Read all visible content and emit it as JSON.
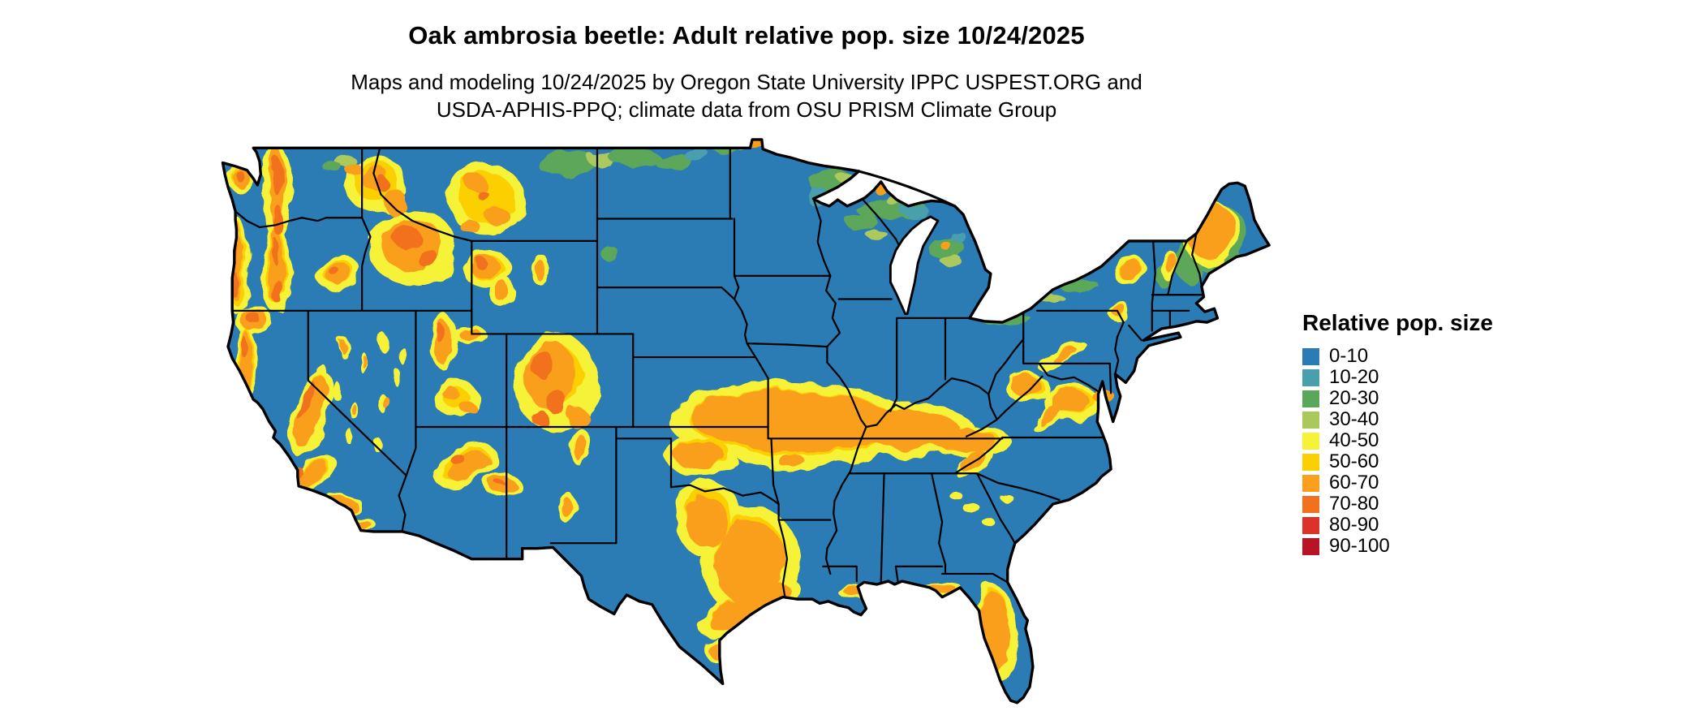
{
  "header": {
    "title": "Oak ambrosia beetle: Adult relative pop. size 10/24/2025",
    "subtitle_line1": "Maps and modeling 10/24/2025 by Oregon State University IPPC USPEST.ORG and",
    "subtitle_line2": "USDA-APHIS-PPQ; climate data from OSU PRISM Climate Group"
  },
  "legend": {
    "title": "Relative pop. size",
    "items": [
      {
        "label": "0-10",
        "color": "#2b7bb5"
      },
      {
        "label": "10-20",
        "color": "#4a9fad"
      },
      {
        "label": "20-30",
        "color": "#5ba75a"
      },
      {
        "label": "30-40",
        "color": "#abc95b"
      },
      {
        "label": "40-50",
        "color": "#f5f237"
      },
      {
        "label": "50-60",
        "color": "#fccf03"
      },
      {
        "label": "60-70",
        "color": "#fa9f1e"
      },
      {
        "label": "70-80",
        "color": "#f2711f"
      },
      {
        "label": "80-90",
        "color": "#dd3227"
      },
      {
        "label": "90-100",
        "color": "#b81425"
      }
    ]
  },
  "map": {
    "border_color": "#000000",
    "background": "#ffffff"
  }
}
